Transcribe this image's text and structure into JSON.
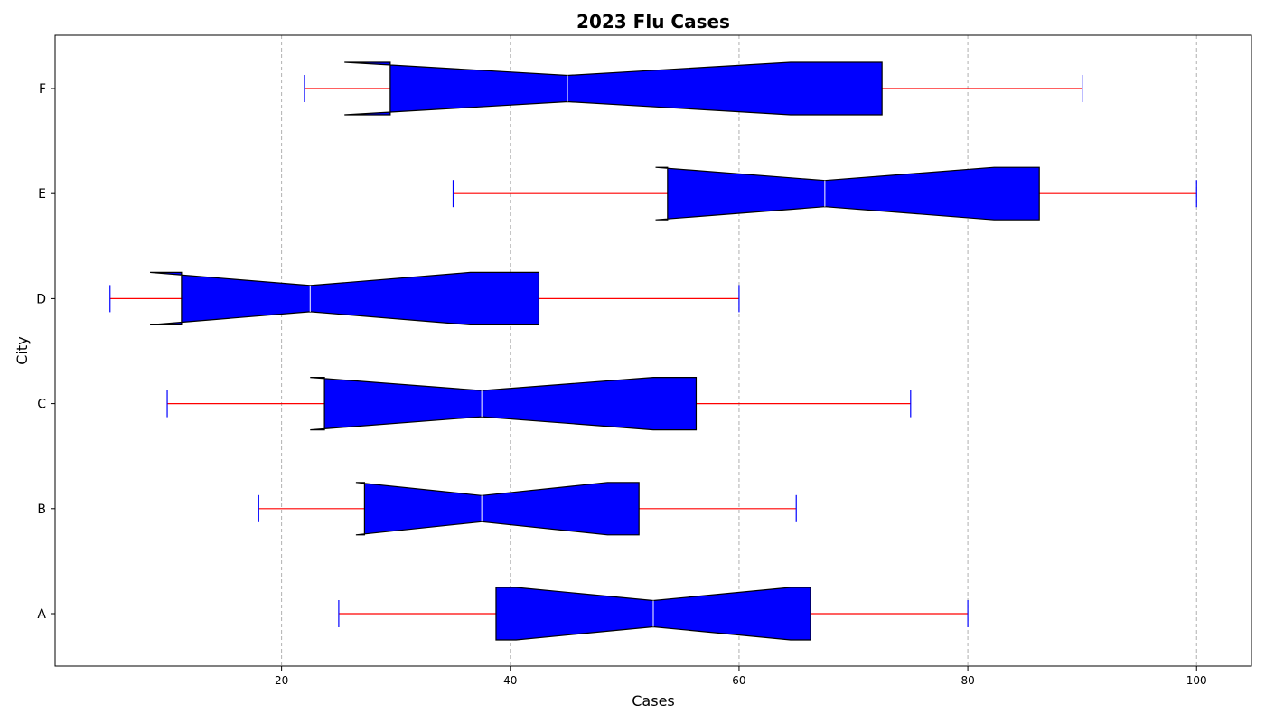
{
  "chart_data": {
    "type": "boxplot",
    "orientation": "horizontal",
    "notched": true,
    "title": "2023 Flu Cases",
    "xlabel": "Cases",
    "ylabel": "City",
    "xlim": [
      0.2,
      104.8
    ],
    "xticks": [
      20,
      40,
      60,
      80,
      100
    ],
    "grid": "x-dashed",
    "categories": [
      "A",
      "B",
      "C",
      "D",
      "E",
      "F"
    ],
    "boxes": [
      {
        "label": "A",
        "whisker_low": 25,
        "q1": 38.75,
        "median": 52.5,
        "q3": 66.25,
        "whisker_high": 80,
        "notch_low": 40.5,
        "notch_high": 64.5
      },
      {
        "label": "B",
        "whisker_low": 18,
        "q1": 27.25,
        "median": 37.5,
        "q3": 51.25,
        "whisker_high": 65,
        "notch_low": 26.5,
        "notch_high": 48.5
      },
      {
        "label": "C",
        "whisker_low": 10,
        "q1": 23.75,
        "median": 37.5,
        "q3": 56.25,
        "whisker_high": 75,
        "notch_low": 22.5,
        "notch_high": 52.5
      },
      {
        "label": "D",
        "whisker_low": 5,
        "q1": 11.25,
        "median": 22.5,
        "q3": 42.5,
        "whisker_high": 60,
        "notch_low": 8.5,
        "notch_high": 36.5
      },
      {
        "label": "E",
        "whisker_low": 35,
        "q1": 53.75,
        "median": 67.5,
        "q3": 86.25,
        "whisker_high": 100,
        "notch_low": 52.7,
        "notch_high": 82.3
      },
      {
        "label": "F",
        "whisker_low": 22,
        "q1": 29.5,
        "median": 45,
        "q3": 72.5,
        "whisker_high": 90,
        "notch_low": 25.5,
        "notch_high": 64.5
      }
    ],
    "colors": {
      "box_fill": "#0000ff",
      "box_edge": "#000000",
      "whisker": "#ff0000",
      "cap": "#0000ff",
      "median": "#ffffff",
      "grid": "#b0b0b0"
    }
  }
}
